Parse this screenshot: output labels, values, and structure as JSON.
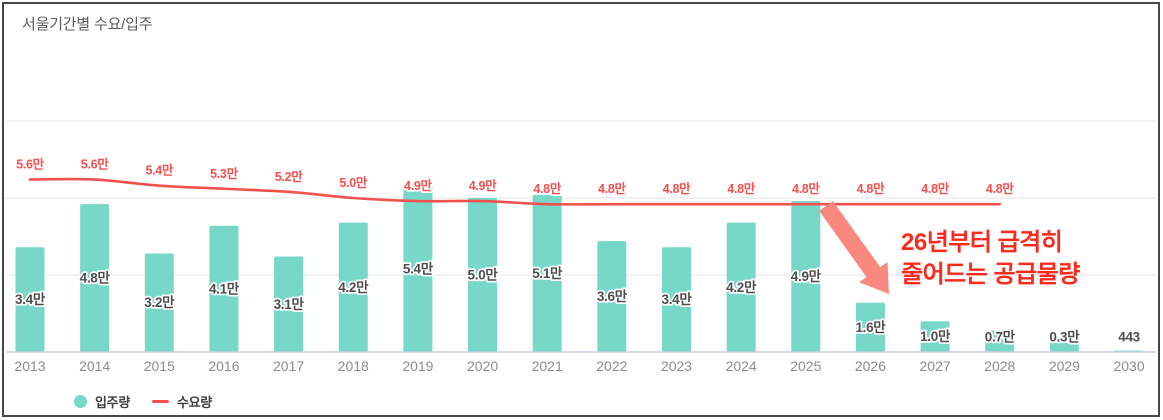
{
  "panel": {
    "title": "서울기간별 수요/입주"
  },
  "legend": {
    "items": [
      {
        "label": "입주량",
        "swatch": "circle",
        "color": "#77d7c8"
      },
      {
        "label": "수요량",
        "swatch": "line",
        "color": "#f2524e"
      }
    ]
  },
  "annotation": {
    "line1": "26년부터 급격히",
    "line2": "줄어드는 공급물량",
    "color": "#fb2a1d",
    "arrow_color": "#f9897e"
  },
  "chart_data": {
    "type": "bar",
    "title": "서울기간별 수요/입주",
    "xlabel": "",
    "ylabel": "",
    "unit": "만 (10,000 households)",
    "categories": [
      "2013",
      "2014",
      "2015",
      "2016",
      "2017",
      "2018",
      "2019",
      "2020",
      "2021",
      "2022",
      "2023",
      "2024",
      "2025",
      "2026",
      "2027",
      "2028",
      "2029",
      "2030"
    ],
    "series": [
      {
        "name": "입주량",
        "type": "bar",
        "color": "#77d7c8",
        "values": [
          3.4,
          4.8,
          3.2,
          4.1,
          3.1,
          4.2,
          5.4,
          5.0,
          5.1,
          3.6,
          3.4,
          4.2,
          4.9,
          1.6,
          1.0,
          0.7,
          0.3,
          0.0443
        ],
        "labels": [
          "3.4만",
          "4.8만",
          "3.2만",
          "4.1만",
          "3.1만",
          "4.2만",
          "5.4만",
          "5.0만",
          "5.1만",
          "3.6만",
          "3.4만",
          "4.2만",
          "4.9만",
          "1.6만",
          "1.0만",
          "0.7만",
          "0.3만",
          "443"
        ]
      },
      {
        "name": "수요량",
        "type": "line",
        "color": "#f2524e",
        "values": [
          5.6,
          5.6,
          5.4,
          5.3,
          5.2,
          5.0,
          4.9,
          4.9,
          4.8,
          4.8,
          4.8,
          4.8,
          4.8,
          4.8,
          4.8,
          4.8,
          null,
          null
        ],
        "labels": [
          "5.6만",
          "5.6만",
          "5.4만",
          "5.3만",
          "5.2만",
          "5.0만",
          "4.9만",
          "4.9만",
          "4.8만",
          "4.8만",
          "4.8만",
          "4.8만",
          "4.8만",
          "4.8만",
          "4.8만",
          "4.8만",
          "",
          ""
        ]
      }
    ],
    "ylim": [
      0,
      8
    ],
    "gridline_step": 2.5,
    "grid": true,
    "legend_position": "bottom-left",
    "label_colors": {
      "bar_value": "#4d4d4d",
      "line_value": "#f4504e",
      "axis": "#8c8c8c"
    }
  }
}
